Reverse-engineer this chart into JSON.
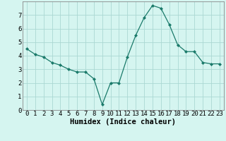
{
  "x": [
    0,
    1,
    2,
    3,
    4,
    5,
    6,
    7,
    8,
    9,
    10,
    11,
    12,
    13,
    14,
    15,
    16,
    17,
    18,
    19,
    20,
    21,
    22,
    23
  ],
  "y": [
    4.5,
    4.1,
    3.9,
    3.5,
    3.3,
    3.0,
    2.8,
    2.8,
    2.3,
    0.4,
    2.0,
    2.0,
    3.9,
    5.5,
    6.8,
    7.7,
    7.5,
    6.3,
    4.8,
    4.3,
    4.3,
    3.5,
    3.4,
    3.4
  ],
  "line_color": "#1a7a6a",
  "marker": "D",
  "marker_size": 2.0,
  "bg_color": "#d5f5f0",
  "grid_color": "#aad8d3",
  "xlabel": "Humidex (Indice chaleur)",
  "xlim": [
    -0.5,
    23.5
  ],
  "ylim": [
    0,
    8
  ],
  "xticks": [
    0,
    1,
    2,
    3,
    4,
    5,
    6,
    7,
    8,
    9,
    10,
    11,
    12,
    13,
    14,
    15,
    16,
    17,
    18,
    19,
    20,
    21,
    22,
    23
  ],
  "yticks": [
    0,
    1,
    2,
    3,
    4,
    5,
    6,
    7
  ],
  "xlabel_fontsize": 7.5,
  "tick_fontsize": 6.5
}
